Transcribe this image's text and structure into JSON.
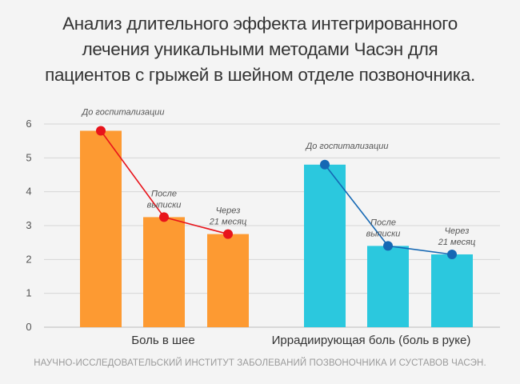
{
  "title_lines": [
    "Анализ длительного эффекта интегрированного",
    "лечения уникальными методами Часэн для",
    "пациентов с грыжей в шейном отделе позвоночника."
  ],
  "footer": "НАУЧНО-ИССЛЕДОВАТЕЛЬСКИЙ ИНСТИТУТ ЗАБОЛЕВАНИЙ ПОЗВОНОЧНИКА И СУСТАВОВ ЧАСЭН.",
  "chart_data": {
    "type": "bar",
    "ylim": [
      0,
      6
    ],
    "yticks": [
      0,
      1,
      2,
      3,
      4,
      5,
      6
    ],
    "grid": true,
    "groups": [
      {
        "name": "Боль в шее",
        "color": "#fd9a32",
        "line_color": "#e8141b",
        "bars": [
          {
            "label_lines": [
              "До госпитализации"
            ],
            "value": 5.8
          },
          {
            "label_lines": [
              "После",
              "выписки"
            ],
            "value": 3.25
          },
          {
            "label_lines": [
              "Через",
              "21 месяц"
            ],
            "value": 2.75
          }
        ]
      },
      {
        "name": "Иррадиирующая боль (боль в руке)",
        "color": "#2bc8de",
        "line_color": "#1568b4",
        "bars": [
          {
            "label_lines": [
              "До госпитализации"
            ],
            "value": 4.8
          },
          {
            "label_lines": [
              "После",
              "выписки"
            ],
            "value": 2.4
          },
          {
            "label_lines": [
              "Через",
              "21 месяц"
            ],
            "value": 2.15
          }
        ]
      }
    ]
  }
}
